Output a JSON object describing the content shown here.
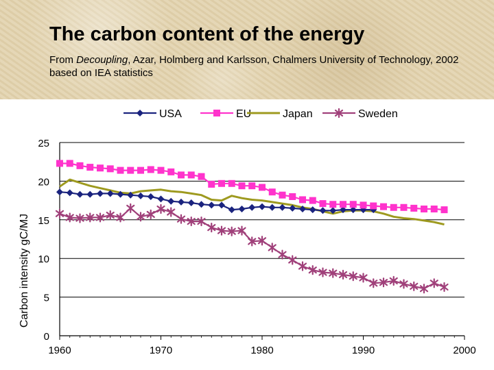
{
  "header": {
    "title": "The carbon content of the energy",
    "subtitle_prefix": "From ",
    "subtitle_italic": "Decoupling",
    "subtitle_rest": ", Azar, Holmberg and Karlsson, Chalmers University of Technology, 2002 based on IEA statistics"
  },
  "chart_data": {
    "type": "line",
    "ylabel": "Carbon intensity gC/MJ",
    "xlabel": "",
    "xlim": [
      1960,
      2000
    ],
    "ylim": [
      0,
      25
    ],
    "x_ticks": [
      "1960",
      "1970",
      "1980",
      "1990",
      "2000"
    ],
    "y_ticks": [
      "0",
      "5",
      "10",
      "15",
      "20",
      "25"
    ],
    "grid": "horizontal",
    "legend_position": "top",
    "x": [
      1960,
      1961,
      1962,
      1963,
      1964,
      1965,
      1966,
      1967,
      1968,
      1969,
      1970,
      1971,
      1972,
      1973,
      1974,
      1975,
      1976,
      1977,
      1978,
      1979,
      1980,
      1981,
      1982,
      1983,
      1984,
      1985,
      1986,
      1987,
      1988,
      1989,
      1990,
      1991,
      1992,
      1993,
      1994,
      1995,
      1996,
      1997,
      1998
    ],
    "series": [
      {
        "name": "USA",
        "color": "#1a237e",
        "marker": "diamond",
        "values": [
          18.6,
          18.5,
          18.3,
          18.3,
          18.4,
          18.4,
          18.3,
          18.2,
          18.1,
          18.0,
          17.7,
          17.4,
          17.3,
          17.2,
          17.0,
          16.9,
          16.9,
          16.3,
          16.4,
          16.6,
          16.7,
          16.6,
          16.6,
          16.5,
          16.4,
          16.3,
          16.2,
          16.2,
          16.3,
          16.3,
          16.3,
          16.3,
          null,
          null,
          null,
          null,
          null,
          null,
          null
        ]
      },
      {
        "name": "EU",
        "color": "#ff33cc",
        "marker": "square",
        "values": [
          22.3,
          22.3,
          22.0,
          21.8,
          21.7,
          21.6,
          21.4,
          21.4,
          21.4,
          21.5,
          21.4,
          21.2,
          20.8,
          20.8,
          20.6,
          19.6,
          19.7,
          19.7,
          19.4,
          19.4,
          19.2,
          18.6,
          18.2,
          18.0,
          17.6,
          17.5,
          17.1,
          17.0,
          17.0,
          17.0,
          16.9,
          16.8,
          16.7,
          16.6,
          16.6,
          16.5,
          16.4,
          16.4,
          16.3
        ]
      },
      {
        "name": "Japan",
        "color": "#9e9a1f",
        "marker": "none",
        "values": [
          19.3,
          20.2,
          19.8,
          19.4,
          19.1,
          18.8,
          18.5,
          18.4,
          18.7,
          18.8,
          18.9,
          18.7,
          18.6,
          18.4,
          18.2,
          17.6,
          17.5,
          18.1,
          17.8,
          17.6,
          17.5,
          17.3,
          17.1,
          16.9,
          16.6,
          16.4,
          16.1,
          15.8,
          16.1,
          16.2,
          16.2,
          16.1,
          15.8,
          15.4,
          15.2,
          15.1,
          14.9,
          14.7,
          14.4
        ]
      },
      {
        "name": "Sweden",
        "color": "#a0407a",
        "marker": "star",
        "values": [
          15.8,
          15.3,
          15.2,
          15.3,
          15.3,
          15.6,
          15.3,
          16.5,
          15.4,
          15.7,
          16.4,
          16.0,
          15.1,
          14.8,
          14.8,
          14.0,
          13.6,
          13.5,
          13.6,
          12.2,
          12.3,
          11.4,
          10.5,
          9.8,
          9.0,
          8.5,
          8.2,
          8.1,
          7.9,
          7.7,
          7.5,
          6.8,
          6.9,
          7.1,
          6.7,
          6.4,
          6.1,
          6.8,
          6.3
        ]
      }
    ]
  }
}
